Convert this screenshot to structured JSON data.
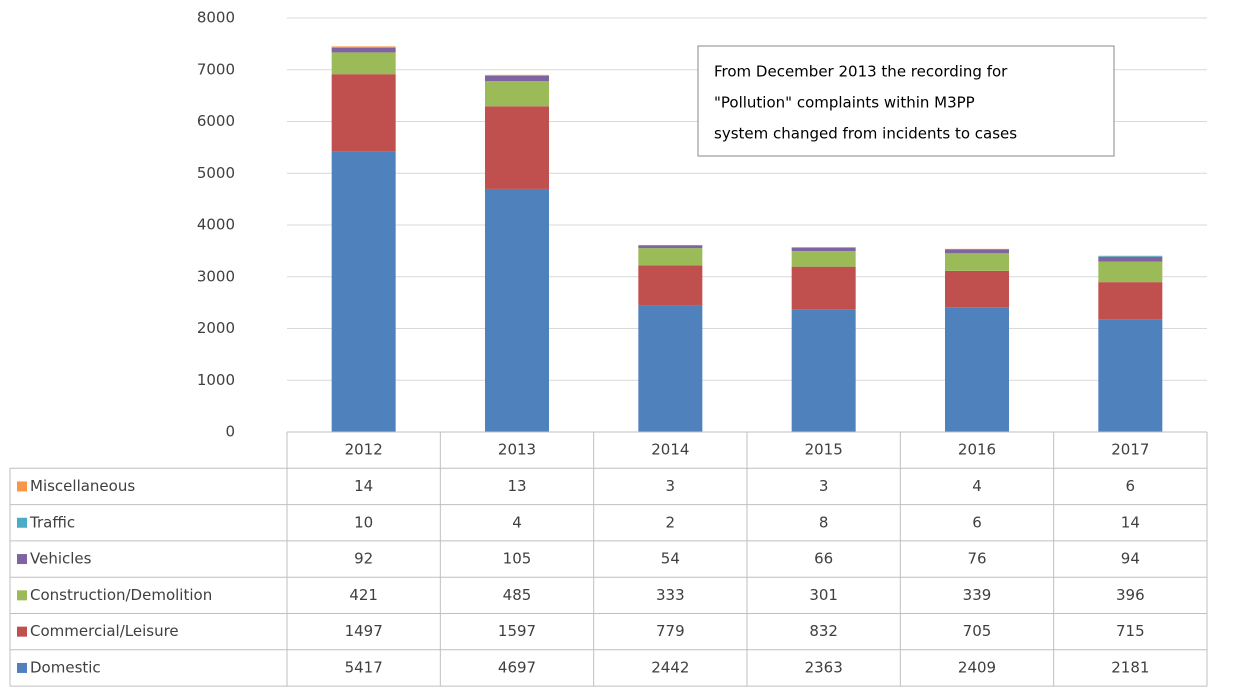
{
  "chart_data": {
    "type": "bar",
    "stacked": true,
    "categories": [
      "2012",
      "2013",
      "2014",
      "2015",
      "2016",
      "2017"
    ],
    "series": [
      {
        "name": "Domestic",
        "color": "#4f81bd",
        "values": [
          5417,
          4697,
          2442,
          2363,
          2409,
          2181
        ]
      },
      {
        "name": "Commercial/Leisure",
        "color": "#c0504d",
        "values": [
          1497,
          1597,
          779,
          832,
          705,
          715
        ]
      },
      {
        "name": "Construction/Demolition",
        "color": "#9bbb59",
        "values": [
          421,
          485,
          333,
          301,
          339,
          396
        ]
      },
      {
        "name": "Vehicles",
        "color": "#8064a2",
        "values": [
          92,
          105,
          54,
          66,
          76,
          94
        ]
      },
      {
        "name": "Traffic",
        "color": "#4bacc6",
        "values": [
          10,
          4,
          2,
          8,
          6,
          14
        ]
      },
      {
        "name": "Miscellaneous",
        "color": "#f79646",
        "values": [
          14,
          13,
          3,
          3,
          4,
          6
        ]
      }
    ],
    "ylim": [
      0,
      8000
    ],
    "yticks": [
      0,
      1000,
      2000,
      3000,
      4000,
      5000,
      6000,
      7000,
      8000
    ],
    "grid": true,
    "annotation": [
      "From December 2013 the recording for",
      "\"Pollution\" complaints within M3PP",
      "system changed from incidents to cases"
    ]
  }
}
